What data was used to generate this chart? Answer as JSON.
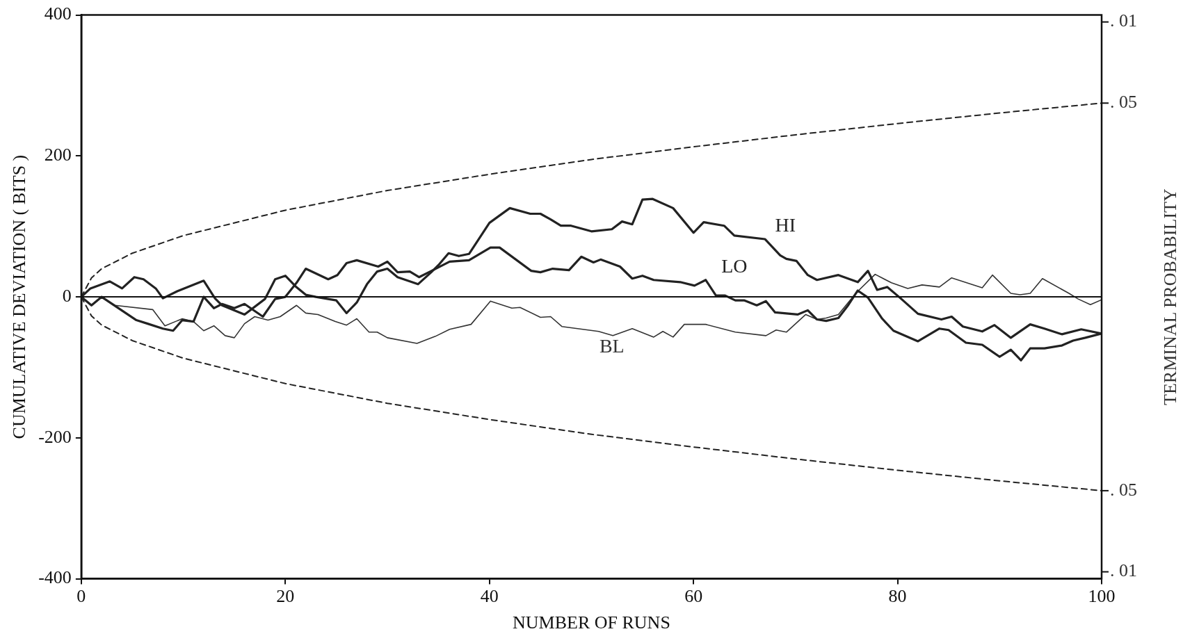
{
  "chart_data": {
    "type": "line",
    "xlabel": "NUMBER OF RUNS",
    "ylabel": "CUMULATIVE DEVIATION ( BITS )",
    "y2label": "TERMINAL PROBABILITY",
    "xlim": [
      0,
      100
    ],
    "xticks": [
      0,
      20,
      40,
      60,
      80,
      100
    ],
    "ylim": [
      -400,
      400
    ],
    "yticks": [
      -400,
      -200,
      0,
      200,
      400
    ],
    "annotations": [
      ". 01",
      {
        "text": ". 05",
        "x": 100,
        "y": 275
      },
      {
        "text": ". 05",
        "x": 100,
        "y": -275
      },
      ". 01"
    ],
    "grid": false,
    "legend": false,
    "marker": "none",
    "ref_lines": [
      {
        "axis": "y",
        "value": 0,
        "label": null
      }
    ],
    "series": [
      {
        "name": "HI",
        "color": "#222222",
        "line_style": "solid",
        "x": [
          0,
          0.9,
          2.8,
          4,
          5.2,
          6.1,
          7.3,
          8,
          9.4,
          12,
          13.1,
          13.8,
          16,
          18,
          19,
          20,
          21,
          22,
          23,
          25,
          26,
          27,
          28,
          29,
          30,
          31,
          33,
          34.3,
          35,
          36,
          37,
          38,
          40,
          42,
          44,
          45,
          46,
          47,
          48,
          50,
          52,
          53,
          54,
          55,
          56,
          58,
          60,
          61,
          63,
          64,
          67,
          68.5,
          69.1,
          70.1,
          71.2,
          72.1,
          74.2,
          76.1,
          77.1,
          78,
          79,
          80.3,
          82,
          84.3,
          85.3,
          86.4,
          88.3,
          89.5,
          91.1,
          93,
          94.4,
          96.1,
          98,
          100
        ],
        "values": [
          0,
          12,
          22,
          12,
          28,
          25,
          12,
          -2,
          8,
          23,
          -2,
          -12,
          -25,
          -3,
          25,
          30,
          15,
          3,
          0,
          -5,
          -23,
          -8,
          18,
          36,
          40,
          28,
          18,
          35,
          45,
          62,
          58,
          61,
          105,
          126,
          118,
          118,
          110,
          101,
          101,
          93,
          96,
          107,
          103,
          138,
          139,
          126,
          91,
          106,
          101,
          87,
          82,
          59,
          54,
          51,
          31,
          24,
          31,
          21,
          37,
          10,
          14,
          -2,
          -24,
          -32,
          -28,
          -42,
          -49,
          -40,
          -58,
          -39,
          -45,
          -53,
          -46,
          -52
        ]
      },
      {
        "name": "LO",
        "color": "#222222",
        "line_style": "solid",
        "x": [
          0,
          1,
          2,
          5.4,
          6.5,
          8,
          9,
          9.9,
          11,
          12,
          13,
          13.8,
          15,
          16,
          17.8,
          19,
          20,
          21.1,
          22,
          24.2,
          25.1,
          26,
          27,
          29.1,
          30,
          31,
          32.2,
          33.1,
          34.2,
          36.1,
          38,
          40.1,
          41,
          44.1,
          45,
          46.2,
          47.8,
          49,
          50.2,
          50.9,
          52.8,
          54,
          55,
          56.1,
          58.7,
          60.1,
          61.2,
          62.2,
          63.1,
          64.1,
          65,
          66.2,
          67.1,
          68,
          70.2,
          71.2,
          72.1,
          73,
          74.2,
          75.1,
          76.1,
          77.1,
          78.5,
          79.6,
          82,
          84.1,
          85,
          86.7,
          88.3,
          90,
          91.1,
          92.1,
          93,
          94.4,
          96.1,
          97.2,
          98.4,
          100
        ],
        "values": [
          0,
          -12,
          0,
          -33,
          -38,
          -45,
          -48,
          -33,
          -35,
          0,
          -16,
          -10,
          -16,
          -10,
          -28,
          -3,
          0,
          20,
          40,
          25,
          31,
          48,
          52,
          43,
          50,
          35,
          36,
          28,
          36,
          50,
          52,
          70,
          70,
          37,
          35,
          40,
          38,
          57,
          49,
          53,
          43,
          26,
          30,
          24,
          21,
          16,
          24,
          2,
          2,
          -5,
          -5,
          -12,
          -6,
          -22,
          -25,
          -19,
          -32,
          -34,
          -30,
          -13,
          9,
          -1,
          -31,
          -48,
          -63,
          -45,
          -47,
          -65,
          -68,
          -85,
          -75,
          -90,
          -73,
          -73,
          -69,
          -62,
          -58,
          -52
        ]
      },
      {
        "name": "BL",
        "color": "#333333",
        "line_style": "solid",
        "x": [
          0,
          1.9,
          3.3,
          7,
          8.2,
          9.9,
          11,
          12,
          13,
          14.1,
          15,
          16,
          17,
          18.3,
          19.5,
          21.1,
          22,
          23.2,
          24.9,
          26,
          27,
          28.2,
          29,
          30,
          32.9,
          34.7,
          36.1,
          38.2,
          40.1,
          42.2,
          43,
          45,
          46,
          47.1,
          50.7,
          52.1,
          54,
          56.1,
          57,
          58,
          59.1,
          61.2,
          64.1,
          67.1,
          68.1,
          69.1,
          71,
          72.1,
          73,
          74.2,
          75.9,
          77.8,
          79.4,
          81,
          82.4,
          84.1,
          85.3,
          88.3,
          89.3,
          91.1,
          92,
          93,
          94.2,
          96.8,
          97.7,
          98.9,
          100
        ],
        "values": [
          0,
          0,
          -12,
          -18,
          -41,
          -31,
          -35,
          -48,
          -41,
          -55,
          -58,
          -38,
          -28,
          -33,
          -28,
          -12,
          -23,
          -25,
          -35,
          -40,
          -31,
          -50,
          -50,
          -58,
          -66,
          -56,
          -46,
          -39,
          -6,
          -16,
          -15,
          -29,
          -28,
          -42,
          -49,
          -55,
          -45,
          -57,
          -49,
          -57,
          -39,
          -39,
          -50,
          -55,
          -47,
          -50,
          -25,
          -32,
          -30,
          -25,
          5,
          32,
          20,
          12,
          17,
          14,
          27,
          13,
          31,
          5,
          3,
          5,
          26,
          5,
          -3,
          -11,
          -4
        ]
      },
      {
        "color": "#222222",
        "line_style": "dashed",
        "x": [
          0,
          1,
          2,
          5,
          10,
          20,
          30,
          40,
          50,
          60,
          70,
          80,
          90,
          100
        ],
        "values": [
          0,
          27,
          40,
          62,
          87,
          123,
          151,
          174,
          195,
          213,
          230,
          246,
          261,
          275
        ]
      },
      {
        "color": "#222222",
        "line_style": "dashed",
        "x": [
          0,
          1,
          2,
          5,
          10,
          20,
          30,
          40,
          50,
          60,
          70,
          80,
          90,
          100
        ],
        "values": [
          0,
          -27,
          -40,
          -62,
          -87,
          -123,
          -151,
          -174,
          -195,
          -213,
          -230,
          -246,
          -261,
          -275
        ]
      }
    ]
  }
}
